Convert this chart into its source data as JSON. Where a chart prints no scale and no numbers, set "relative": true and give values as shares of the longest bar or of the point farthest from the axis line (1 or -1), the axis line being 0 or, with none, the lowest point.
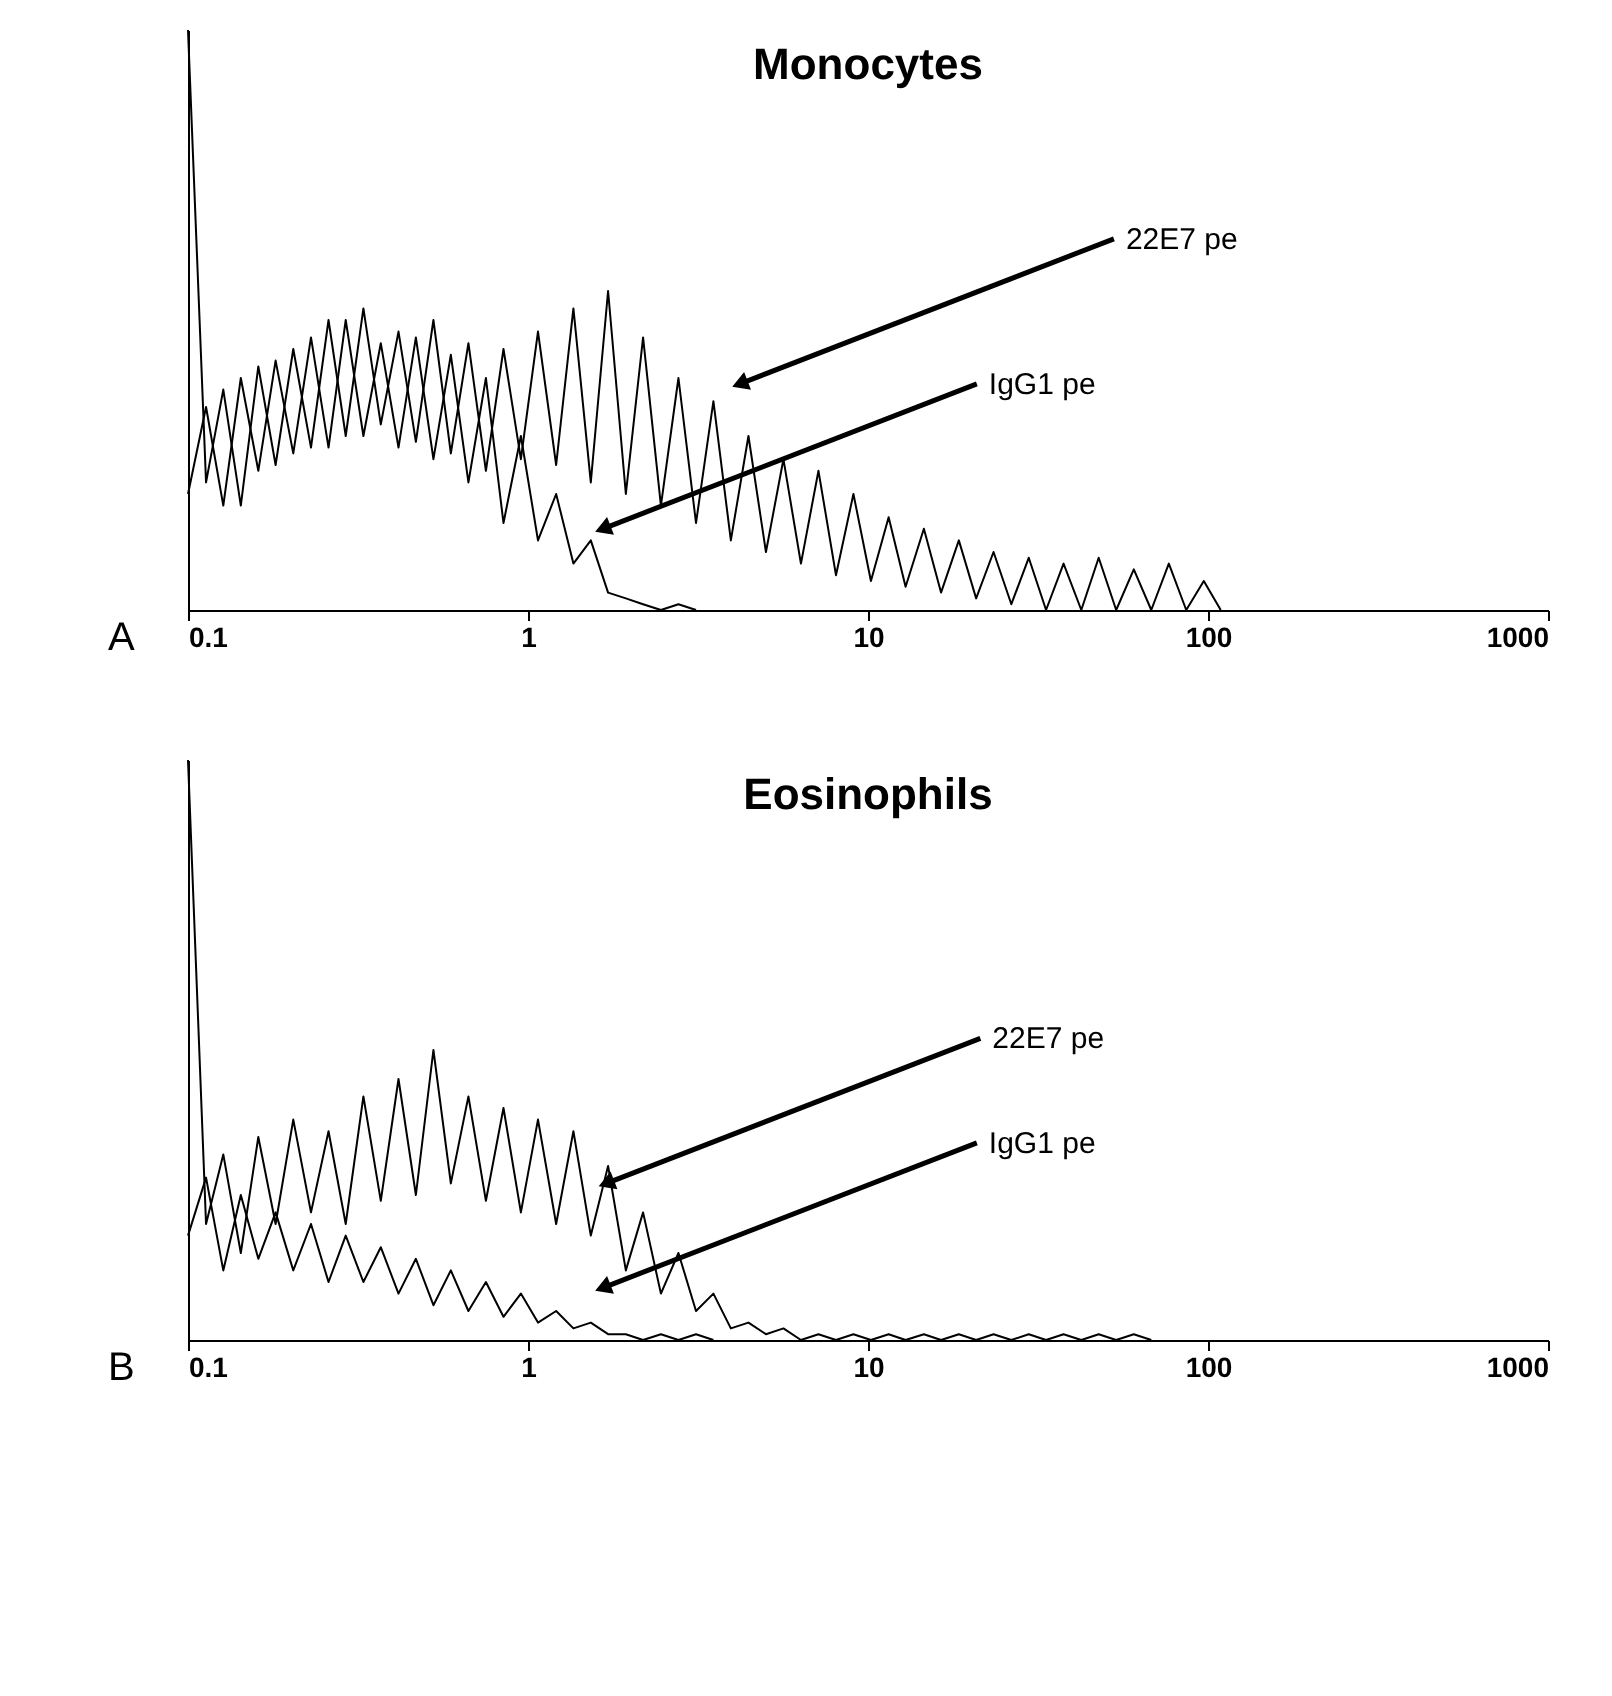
{
  "chart_data": [
    {
      "type": "line",
      "title": "Monocytes",
      "relative": true,
      "xlim": [
        0.1,
        1000
      ],
      "xticks": [
        0.1,
        1,
        10,
        100,
        1000
      ],
      "log": "x",
      "grid": false,
      "marker": "none",
      "line_style": "solid",
      "tick_labels": "x",
      "annotations": [
        "A",
        {
          "text": "22E7 pe",
          "x": 4.2,
          "y": 0.39
        },
        {
          "text": "IgG1 pe",
          "x": 1.66,
          "y": 0.14
        }
      ],
      "series": [
        {
          "color": "#000000",
          "x": [
            0.1,
            0.113,
            0.127,
            0.143,
            0.161,
            0.181,
            0.204,
            0.23,
            0.259,
            0.291,
            0.328,
            0.369,
            0.416,
            0.468,
            0.527,
            0.593,
            0.668,
            0.752,
            0.847,
            0.953,
            1.07,
            1.21,
            1.36,
            1.53,
            1.72,
            1.94,
            2.18,
            2.46,
            2.77,
            3.12,
            3.51,
            3.95,
            4.45,
            5.01,
            5.64,
            6.35,
            7.15,
            8.05,
            9.06,
            10.2,
            11.5,
            12.9,
            14.6,
            16.4,
            18.5,
            20.8,
            23.4,
            26.4,
            29.7,
            33.4,
            37.6,
            42.4,
            47.7,
            53.7,
            60.5,
            68.1,
            76.7,
            86.3,
            97.2,
            109
          ],
          "values": [
            1,
            0.22,
            0.38,
            0.18,
            0.42,
            0.25,
            0.45,
            0.28,
            0.5,
            0.3,
            0.52,
            0.32,
            0.48,
            0.29,
            0.5,
            0.27,
            0.46,
            0.24,
            0.45,
            0.26,
            0.48,
            0.25,
            0.52,
            0.22,
            0.55,
            0.2,
            0.47,
            0.18,
            0.4,
            0.15,
            0.36,
            0.12,
            0.3,
            0.1,
            0.26,
            0.08,
            0.24,
            0.06,
            0.2,
            0.05,
            0.16,
            0.04,
            0.14,
            0.03,
            0.12,
            0.02,
            0.1,
            0.01,
            0.09,
            0,
            0.08,
            0,
            0.09,
            0,
            0.07,
            0,
            0.08,
            0,
            0.05,
            0
          ]
        },
        {
          "color": "#000000",
          "x": [
            0.1,
            0.113,
            0.127,
            0.143,
            0.161,
            0.181,
            0.204,
            0.23,
            0.259,
            0.291,
            0.328,
            0.369,
            0.416,
            0.468,
            0.527,
            0.593,
            0.668,
            0.752,
            0.847,
            0.953,
            1.07,
            1.21,
            1.36,
            1.53,
            1.72,
            1.94,
            2.18,
            2.46,
            2.77,
            3.12
          ],
          "values": [
            0.2,
            0.35,
            0.18,
            0.4,
            0.24,
            0.43,
            0.27,
            0.47,
            0.28,
            0.5,
            0.3,
            0.46,
            0.28,
            0.47,
            0.26,
            0.44,
            0.22,
            0.4,
            0.15,
            0.3,
            0.12,
            0.2,
            0.08,
            0.12,
            0.03,
            0.02,
            0.01,
            0,
            0.01,
            0
          ]
        }
      ]
    },
    {
      "type": "line",
      "title": "Eosinophils",
      "relative": true,
      "xlim": [
        0.1,
        1000
      ],
      "xticks": [
        0.1,
        1,
        10,
        100,
        1000
      ],
      "log": "x",
      "grid": false,
      "marker": "none",
      "line_style": "solid",
      "tick_labels": "x",
      "annotations": [
        "B",
        {
          "text": "22E7 pe",
          "x": 1.7,
          "y": 0.27
        },
        {
          "text": "IgG1 pe",
          "x": 1.66,
          "y": 0.09
        }
      ],
      "series": [
        {
          "color": "#000000",
          "x": [
            0.1,
            0.113,
            0.127,
            0.143,
            0.161,
            0.181,
            0.204,
            0.23,
            0.259,
            0.291,
            0.328,
            0.369,
            0.416,
            0.468,
            0.527,
            0.593,
            0.668,
            0.752,
            0.847,
            0.953,
            1.07,
            1.21,
            1.36,
            1.53,
            1.72,
            1.94,
            2.18,
            2.46,
            2.77,
            3.12,
            3.51,
            3.95,
            4.45,
            5.01,
            5.64,
            6.35,
            7.15,
            8.05,
            9.06,
            10.2,
            11.5,
            12.9,
            14.6,
            16.4,
            18.5,
            20.8,
            23.4,
            26.4,
            29.7,
            33.4,
            37.6,
            42.4,
            47.7,
            53.7,
            60.5,
            68.1
          ],
          "values": [
            1,
            0.2,
            0.32,
            0.15,
            0.35,
            0.2,
            0.38,
            0.22,
            0.36,
            0.2,
            0.42,
            0.24,
            0.45,
            0.25,
            0.5,
            0.27,
            0.42,
            0.24,
            0.4,
            0.22,
            0.38,
            0.2,
            0.36,
            0.18,
            0.3,
            0.12,
            0.22,
            0.08,
            0.15,
            0.05,
            0.08,
            0.02,
            0.03,
            0.01,
            0.02,
            0,
            0.01,
            0,
            0.01,
            0,
            0.01,
            0,
            0.01,
            0,
            0.01,
            0,
            0.01,
            0,
            0.01,
            0,
            0.01,
            0,
            0.01,
            0,
            0.01,
            0
          ]
        },
        {
          "color": "#000000",
          "x": [
            0.1,
            0.113,
            0.127,
            0.143,
            0.161,
            0.181,
            0.204,
            0.23,
            0.259,
            0.291,
            0.328,
            0.369,
            0.416,
            0.468,
            0.527,
            0.593,
            0.668,
            0.752,
            0.847,
            0.953,
            1.07,
            1.21,
            1.36,
            1.53,
            1.72,
            1.94,
            2.18,
            2.46,
            2.77,
            3.12,
            3.51
          ],
          "values": [
            0.18,
            0.28,
            0.12,
            0.25,
            0.14,
            0.22,
            0.12,
            0.2,
            0.1,
            0.18,
            0.1,
            0.16,
            0.08,
            0.14,
            0.06,
            0.12,
            0.05,
            0.1,
            0.04,
            0.08,
            0.03,
            0.05,
            0.02,
            0.03,
            0.01,
            0.01,
            0,
            0.01,
            0,
            0.01,
            0
          ]
        }
      ]
    }
  ]
}
